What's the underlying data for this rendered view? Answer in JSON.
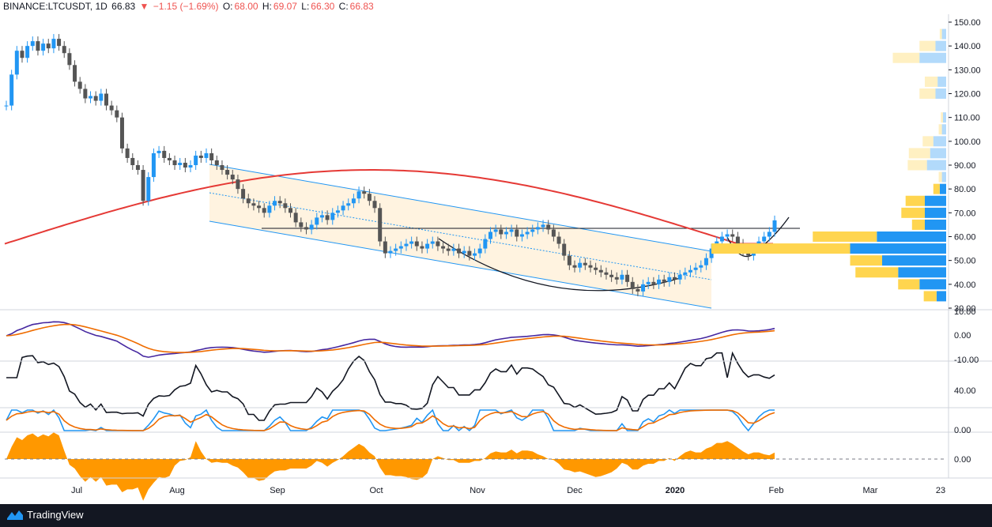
{
  "header": {
    "symbol": "BINANCE:LTCUSDT, 1D",
    "last": "66.83",
    "change": "−1.15 (−1.69%)",
    "o_label": "O:",
    "o": "68.00",
    "h_label": "H:",
    "h": "69.07",
    "l_label": "L:",
    "l": "66.30",
    "c_label": "C:",
    "c": "66.83"
  },
  "footer": {
    "brand": "TradingView"
  },
  "colors": {
    "up": "#26a69a",
    "down": "#ef5350",
    "candle_up": "#2196f3",
    "candle_down": "#555555",
    "ma": "#e53935",
    "channel": "#2196f3",
    "channel_fill": "#fff3e0",
    "macd": "#4527a0",
    "signal": "#ef6c00",
    "stoch_k": "#2196f3",
    "stoch_d": "#ef6c00",
    "momentum": "#ff9800",
    "vp_up": "#2196f3",
    "vp_down": "#ffd54f"
  },
  "chart_data": {
    "type": "candlestick",
    "title": "BINANCE:LTCUSDT, 1D",
    "x_ticks": [
      "Jul",
      "Aug",
      "Sep",
      "Oct",
      "Nov",
      "Dec",
      "2020",
      "Feb",
      "Mar",
      "23"
    ],
    "price_ticks": [
      "150.00",
      "140.00",
      "130.00",
      "120.00",
      "110.00",
      "100.00",
      "90.00",
      "80.00",
      "70.00",
      "60.00",
      "50.00",
      "40.00",
      "30.00"
    ],
    "price_range": [
      30,
      150
    ],
    "closes": [
      115,
      128,
      138,
      135,
      140,
      142,
      138,
      141,
      139,
      143,
      140,
      137,
      132,
      125,
      122,
      118,
      119,
      117,
      120,
      115,
      113,
      110,
      97,
      93,
      90,
      88,
      75,
      85,
      95,
      96,
      93,
      92,
      90,
      91,
      89,
      90,
      94,
      93,
      95,
      92,
      90,
      88,
      86,
      84,
      80,
      76,
      74,
      73,
      72,
      70,
      73,
      75,
      74,
      72,
      70,
      66,
      64,
      63,
      65,
      68,
      69,
      67,
      70,
      71,
      73,
      74,
      76,
      79,
      78,
      75,
      72,
      58,
      53,
      54,
      55,
      56,
      57,
      58,
      56,
      55,
      57,
      58,
      56,
      55,
      54,
      55,
      53,
      54,
      52,
      53,
      55,
      59,
      62,
      63,
      61,
      62,
      63,
      60,
      61,
      62,
      63,
      64,
      65,
      63,
      60,
      57,
      52,
      48,
      47,
      49,
      48,
      47,
      46,
      45,
      44,
      43,
      42,
      44,
      41,
      38,
      37,
      40,
      41,
      40,
      42,
      41,
      43,
      42,
      44,
      45,
      46,
      47,
      48,
      51,
      55,
      58,
      60,
      61,
      60,
      57,
      54,
      52,
      55,
      58,
      60,
      62,
      66.83
    ],
    "ma_ticks": [
      57,
      88
    ],
    "resistance": 63.5,
    "volume_profile": [
      {
        "price": 35,
        "up": 9,
        "down": 12
      },
      {
        "price": 40,
        "up": 25,
        "down": 20
      },
      {
        "price": 45,
        "up": 45,
        "down": 40
      },
      {
        "price": 50,
        "up": 60,
        "down": 30
      },
      {
        "price": 55,
        "up": 90,
        "down": 130
      },
      {
        "price": 60,
        "up": 65,
        "down": 60
      },
      {
        "price": 65,
        "up": 20,
        "down": 12
      },
      {
        "price": 70,
        "up": 20,
        "down": 22
      },
      {
        "price": 75,
        "up": 20,
        "down": 18
      },
      {
        "price": 80,
        "up": 6,
        "down": 6
      },
      {
        "price": 85,
        "up": 4,
        "down": 3
      },
      {
        "price": 90,
        "up": 18,
        "down": 18
      },
      {
        "price": 95,
        "up": 15,
        "down": 20
      },
      {
        "price": 100,
        "up": 12,
        "down": 10
      },
      {
        "price": 105,
        "up": 4,
        "down": 3
      },
      {
        "price": 110,
        "up": 3,
        "down": 2
      },
      {
        "price": 120,
        "up": 10,
        "down": 15
      },
      {
        "price": 125,
        "up": 8,
        "down": 12
      },
      {
        "price": 135,
        "up": 25,
        "down": 25
      },
      {
        "price": 140,
        "up": 10,
        "down": 15
      },
      {
        "price": 145,
        "up": 4,
        "down": 2
      }
    ],
    "macd_ticks": [
      "10.00",
      "0.00",
      "-10.00"
    ],
    "rsi_ticks": [
      "40.00"
    ],
    "stoch_ticks": [
      "0.00"
    ],
    "momentum_ticks": [
      "0.00"
    ]
  }
}
